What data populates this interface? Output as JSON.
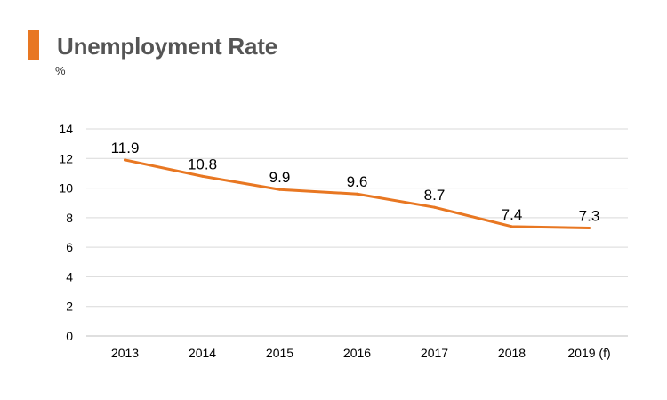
{
  "colors": {
    "accent": "#e87722",
    "grid": "#d9d9d9",
    "axis": "#bfbfbf",
    "title": "#555555",
    "text": "#000000"
  },
  "header": {
    "title": "Unemployment Rate",
    "unit": "%"
  },
  "chart_data": {
    "type": "line",
    "title": "Unemployment Rate",
    "ylabel": "%",
    "xlabel": "",
    "categories": [
      "2013",
      "2014",
      "2015",
      "2016",
      "2017",
      "2018",
      "2019 (f)"
    ],
    "series": [
      {
        "values": [
          11.9,
          10.8,
          9.9,
          9.6,
          8.7,
          7.4,
          7.3
        ],
        "data_labels": [
          "11.9",
          "10.8",
          "9.9",
          "9.6",
          "8.7",
          "7.4",
          "7.3"
        ]
      }
    ],
    "ylim": [
      0,
      14
    ],
    "yticks": [
      0,
      2,
      4,
      6,
      8,
      10,
      12,
      14
    ],
    "grid": true,
    "legend": "none"
  }
}
